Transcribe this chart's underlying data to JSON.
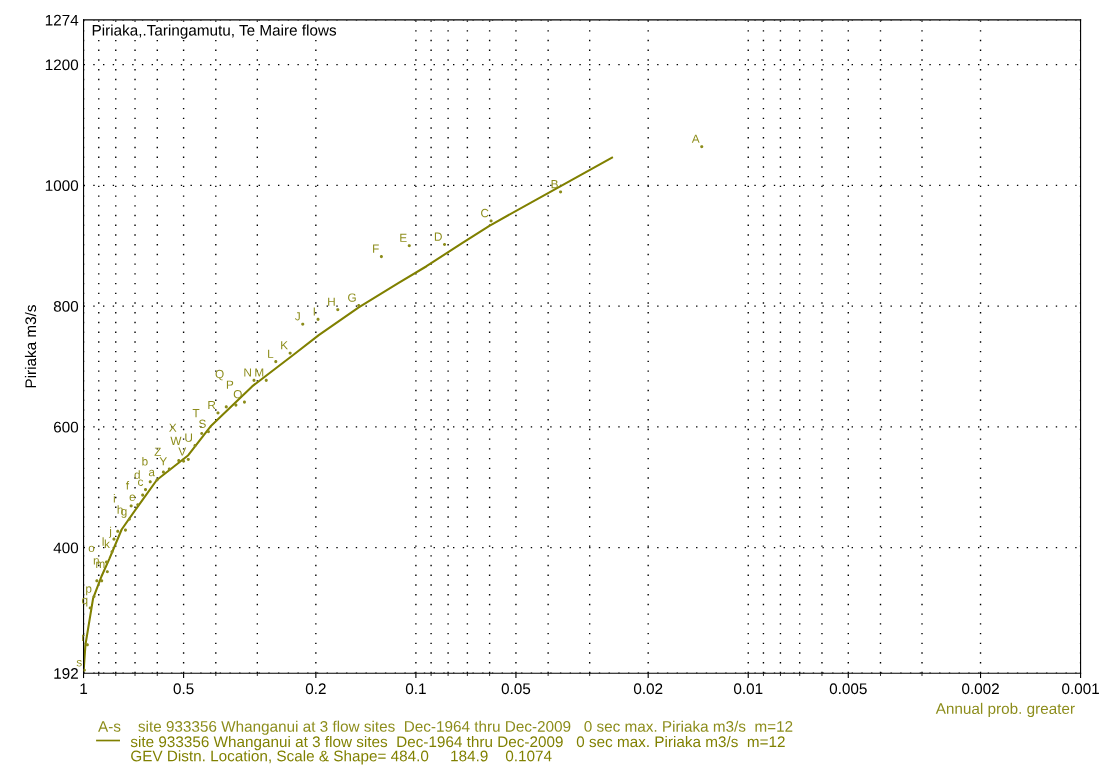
{
  "chart_data": {
    "type": "scatter",
    "title": "Piriaka,.Taringamutu, Te Maire flows",
    "xlabel": "Annual prob. greater",
    "ylabel": "Piriaka m3/s",
    "log": "x",
    "xlim": [
      1,
      0.001
    ],
    "xticks": [
      1,
      0.5,
      0.2,
      0.1,
      0.05,
      0.02,
      0.01,
      0.005,
      0.002,
      0.001
    ],
    "ylim": [
      192,
      1274
    ],
    "yticks": [
      192,
      400,
      600,
      800,
      1000,
      1200,
      1274
    ],
    "grid": true,
    "legend": "bottom left",
    "series": [
      {
        "name": "A-s    site 933356 Whanganui at 3 flow sites  Dec-1964 thru Dec-2009   0 sec max. Piriaka m3/s  m=12",
        "color": "#8c8c1a",
        "marker": "none",
        "x": [
          0.0138,
          0.0367,
          0.0594,
          0.082,
          0.1047,
          0.127,
          0.1486,
          0.1718,
          0.197,
          0.219,
          0.239,
          0.264,
          0.282,
          0.307,
          0.328,
          0.348,
          0.372,
          0.394,
          0.421,
          0.441,
          0.462,
          0.484,
          0.5,
          0.517,
          0.552,
          0.575,
          0.601,
          0.63,
          0.651,
          0.664,
          0.687,
          0.719,
          0.728,
          0.748,
          0.789,
          0.81,
          0.821,
          0.853,
          0.848,
          0.882,
          0.912,
          0.93,
          0.955,
          0.974,
          0.995
        ],
        "values": [
          1064,
          989,
          941,
          902,
          900,
          882,
          801,
          794,
          778,
          770,
          722,
          708,
          677,
          677,
          641,
          636,
          633,
          623,
          592,
          589,
          569,
          546,
          543,
          544,
          530,
          525,
          512,
          509,
          496,
          487,
          471,
          469,
          447,
          429,
          427,
          414,
          393,
          376,
          360,
          345,
          345,
          319,
          300,
          239,
          197
        ],
        "value_labels": [
          "A",
          "B",
          "C",
          "D",
          "E",
          "F",
          "G",
          "H",
          "I",
          "J",
          "K",
          "L",
          "M",
          "N",
          "O",
          "P",
          "Q",
          "R",
          "S",
          "T",
          "U",
          "V",
          "W",
          "X",
          "Y",
          "Z",
          "a",
          "b",
          "c",
          "d",
          "e",
          "f",
          "g",
          "h",
          "i",
          "j",
          "k",
          "l",
          "m",
          "n",
          "o",
          "p",
          "q",
          "r",
          "s"
        ]
      },
      {
        "type": "line",
        "name": "site 933356 Whanganui at 3 flow sites  Dec-1964 thru Dec-2009   0 sec max. Piriaka m3/s  m=12\nGEV Distn. Location, Scale & Shape= 484.0     184.9    0.1074",
        "color": "#808000",
        "line_style": "solid",
        "x": [
          0.999,
          0.987,
          0.936,
          0.882,
          0.837,
          0.768,
          0.687,
          0.602,
          0.484,
          0.413,
          0.311,
          0.234,
          0.196,
          0.1486,
          0.113,
          0.0929,
          0.0728,
          0.0601,
          0.0369,
          0.0257
        ],
        "values": [
          197,
          239,
          316,
          353,
          381,
          430,
          468,
          512,
          553,
          602,
          667,
          719,
          752,
          798,
          838,
          866,
          904,
          933,
          998,
          1046
        ]
      }
    ]
  }
}
